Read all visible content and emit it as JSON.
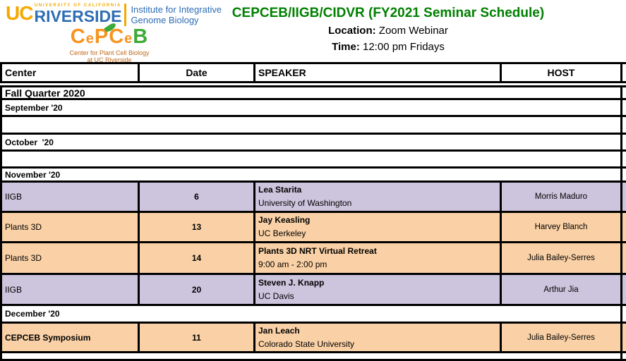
{
  "branding": {
    "uc": "UC",
    "university_small": "UNIVERSITY OF CALIFORNIA",
    "riverside": "RIVERSIDE",
    "institute_line1": "Institute for Integrative",
    "institute_line2": "Genome Biology",
    "cepceb_logo_text": "CePCeB",
    "cepceb_sub1": "Center for Plant Cell Biology",
    "cepceb_sub2": "at UC Riverside"
  },
  "header": {
    "title": "CEPCEB/IIGB/CIDVR (FY2021 Seminar Schedule)",
    "location_label": "Location:",
    "location_value": "Zoom Webinar",
    "time_label": "Time:",
    "time_value": "12:00 pm Fridays"
  },
  "table": {
    "columns": [
      "Center",
      "Date",
      "SPEAKER",
      "HOST"
    ],
    "quarter_header": "Fall Quarter 2020",
    "rows": [
      {
        "type": "month",
        "label": "September '20"
      },
      {
        "type": "empty"
      },
      {
        "type": "month",
        "label": "October  '20"
      },
      {
        "type": "empty"
      },
      {
        "type": "month",
        "label": "November '20"
      },
      {
        "type": "event",
        "color": "purple",
        "center": "IIGB",
        "date": "6",
        "speaker": "Lea Starita",
        "affiliation": "University of Washington",
        "host": "Morris Maduro"
      },
      {
        "type": "event",
        "color": "peach",
        "center": "Plants 3D",
        "date": "13",
        "speaker": "Jay Keasling",
        "affiliation": "UC Berkeley",
        "host": "Harvey Blanch"
      },
      {
        "type": "event",
        "color": "peach",
        "center": "Plants 3D",
        "date": "14",
        "speaker": "Plants 3D NRT Virtual Retreat",
        "affiliation": "9:00 am - 2:00 pm",
        "host": "Julia Bailey-Serres"
      },
      {
        "type": "event",
        "color": "purple",
        "center": "IIGB",
        "date": "20",
        "speaker": "Steven J. Knapp",
        "affiliation": "UC Davis",
        "host": "Arthur Jia"
      },
      {
        "type": "month",
        "label": "December '20"
      },
      {
        "type": "event",
        "color": "peach",
        "center": "CEPCEB Symposium",
        "center_bold": true,
        "date": "11",
        "speaker": "Jan Leach",
        "affiliation": "Colorado State University",
        "host": "Julia Bailey-Serres"
      },
      {
        "type": "empty"
      }
    ]
  },
  "colors": {
    "purple": "#CDC4DD",
    "peach": "#FAD1A6",
    "title_green": "#008000",
    "ucr_blue": "#2E6DB4",
    "ucr_gold": "#F5A800",
    "cepceb_orange": "#F7941E",
    "cepceb_green": "#3CAA36",
    "cepceb_text": "#C06A1E",
    "border_black": "#000000"
  }
}
